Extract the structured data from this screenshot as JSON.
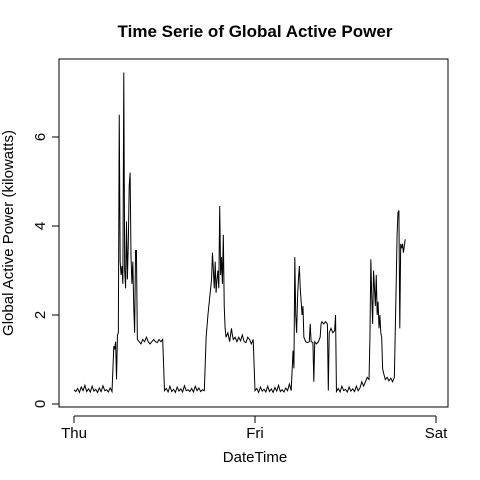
{
  "chart_data": {
    "type": "line",
    "title": "Time Serie of Global Active Power",
    "xlabel": "DateTime",
    "ylabel": "Global Active Power (kilowatts)",
    "x_ticks": [
      {
        "label": "Thu",
        "day": 0
      },
      {
        "label": "Fri",
        "day": 1
      },
      {
        "label": "Sat",
        "day": 2
      }
    ],
    "y_ticks": [
      0,
      2,
      4,
      6
    ],
    "xlim": [
      0,
      2
    ],
    "ylim": [
      0,
      7.5
    ],
    "grid": false,
    "legend": "none",
    "line_color": "#000000",
    "series": [
      {
        "values": [
          [
            0.0,
            0.32
          ],
          [
            0.01,
            0.28
          ],
          [
            0.02,
            0.35
          ],
          [
            0.03,
            0.26
          ],
          [
            0.04,
            0.38
          ],
          [
            0.05,
            0.3
          ],
          [
            0.06,
            0.42
          ],
          [
            0.07,
            0.28
          ],
          [
            0.08,
            0.34
          ],
          [
            0.09,
            0.27
          ],
          [
            0.1,
            0.4
          ],
          [
            0.11,
            0.29
          ],
          [
            0.12,
            0.33
          ],
          [
            0.13,
            0.26
          ],
          [
            0.14,
            0.36
          ],
          [
            0.15,
            0.28
          ],
          [
            0.16,
            0.41
          ],
          [
            0.17,
            0.3
          ],
          [
            0.18,
            0.32
          ],
          [
            0.19,
            0.27
          ],
          [
            0.2,
            0.36
          ],
          [
            0.21,
            0.28
          ],
          [
            0.22,
            1.3
          ],
          [
            0.225,
            1.25
          ],
          [
            0.23,
            1.4
          ],
          [
            0.235,
            0.55
          ],
          [
            0.24,
            1.55
          ],
          [
            0.245,
            1.6
          ],
          [
            0.25,
            6.5
          ],
          [
            0.255,
            3.2
          ],
          [
            0.26,
            2.9
          ],
          [
            0.265,
            3.1
          ],
          [
            0.27,
            2.7
          ],
          [
            0.275,
            7.45
          ],
          [
            0.28,
            3.0
          ],
          [
            0.285,
            2.6
          ],
          [
            0.29,
            4.1
          ],
          [
            0.295,
            2.8
          ],
          [
            0.3,
            3.6
          ],
          [
            0.305,
            4.9
          ],
          [
            0.31,
            5.2
          ],
          [
            0.315,
            3.3
          ],
          [
            0.32,
            2.7
          ],
          [
            0.325,
            3.2
          ],
          [
            0.33,
            2.2
          ],
          [
            0.335,
            1.6
          ],
          [
            0.34,
            3.45
          ],
          [
            0.345,
            3.45
          ],
          [
            0.35,
            1.45
          ],
          [
            0.36,
            1.4
          ],
          [
            0.37,
            1.35
          ],
          [
            0.38,
            1.45
          ],
          [
            0.39,
            1.4
          ],
          [
            0.4,
            1.5
          ],
          [
            0.41,
            1.4
          ],
          [
            0.42,
            1.35
          ],
          [
            0.43,
            1.4
          ],
          [
            0.44,
            1.45
          ],
          [
            0.45,
            1.4
          ],
          [
            0.46,
            1.38
          ],
          [
            0.47,
            1.45
          ],
          [
            0.48,
            1.4
          ],
          [
            0.49,
            1.45
          ],
          [
            0.5,
            0.3
          ],
          [
            0.51,
            0.35
          ],
          [
            0.52,
            0.27
          ],
          [
            0.53,
            0.4
          ],
          [
            0.54,
            0.28
          ],
          [
            0.55,
            0.33
          ],
          [
            0.56,
            0.26
          ],
          [
            0.57,
            0.38
          ],
          [
            0.58,
            0.29
          ],
          [
            0.59,
            0.34
          ],
          [
            0.6,
            0.27
          ],
          [
            0.61,
            0.41
          ],
          [
            0.62,
            0.3
          ],
          [
            0.63,
            0.32
          ],
          [
            0.64,
            0.28
          ],
          [
            0.65,
            0.35
          ],
          [
            0.66,
            0.27
          ],
          [
            0.67,
            0.4
          ],
          [
            0.68,
            0.3
          ],
          [
            0.69,
            0.36
          ],
          [
            0.7,
            0.28
          ],
          [
            0.71,
            0.32
          ],
          [
            0.72,
            0.3
          ],
          [
            0.73,
            1.5
          ],
          [
            0.74,
            2.0
          ],
          [
            0.75,
            2.4
          ],
          [
            0.76,
            2.8
          ],
          [
            0.765,
            3.4
          ],
          [
            0.77,
            3.0
          ],
          [
            0.775,
            2.6
          ],
          [
            0.78,
            3.2
          ],
          [
            0.785,
            2.5
          ],
          [
            0.79,
            2.8
          ],
          [
            0.795,
            3.0
          ],
          [
            0.8,
            2.6
          ],
          [
            0.805,
            4.45
          ],
          [
            0.81,
            2.9
          ],
          [
            0.815,
            3.3
          ],
          [
            0.82,
            2.7
          ],
          [
            0.825,
            3.8
          ],
          [
            0.83,
            2.2
          ],
          [
            0.835,
            1.7
          ],
          [
            0.84,
            1.5
          ],
          [
            0.85,
            1.6
          ],
          [
            0.86,
            1.4
          ],
          [
            0.87,
            1.7
          ],
          [
            0.875,
            1.55
          ],
          [
            0.88,
            1.45
          ],
          [
            0.89,
            1.5
          ],
          [
            0.9,
            1.4
          ],
          [
            0.91,
            1.5
          ],
          [
            0.92,
            1.42
          ],
          [
            0.93,
            1.55
          ],
          [
            0.94,
            1.4
          ],
          [
            0.95,
            1.38
          ],
          [
            0.96,
            1.5
          ],
          [
            0.97,
            1.45
          ],
          [
            0.98,
            1.35
          ],
          [
            0.99,
            1.45
          ],
          [
            1.0,
            0.3
          ],
          [
            1.01,
            0.35
          ],
          [
            1.02,
            0.26
          ],
          [
            1.03,
            0.38
          ],
          [
            1.04,
            0.29
          ],
          [
            1.05,
            0.33
          ],
          [
            1.06,
            0.27
          ],
          [
            1.07,
            0.4
          ],
          [
            1.08,
            0.28
          ],
          [
            1.09,
            0.34
          ],
          [
            1.1,
            0.26
          ],
          [
            1.11,
            0.37
          ],
          [
            1.12,
            0.29
          ],
          [
            1.13,
            0.42
          ],
          [
            1.14,
            0.28
          ],
          [
            1.15,
            0.32
          ],
          [
            1.16,
            0.27
          ],
          [
            1.17,
            0.36
          ],
          [
            1.18,
            0.3
          ],
          [
            1.19,
            0.45
          ],
          [
            1.2,
            0.3
          ],
          [
            1.21,
            1.2
          ],
          [
            1.215,
            0.8
          ],
          [
            1.22,
            3.3
          ],
          [
            1.225,
            2.0
          ],
          [
            1.23,
            1.6
          ],
          [
            1.235,
            2.4
          ],
          [
            1.24,
            2.8
          ],
          [
            1.245,
            3.1
          ],
          [
            1.25,
            2.6
          ],
          [
            1.255,
            2.3
          ],
          [
            1.26,
            2.0
          ],
          [
            1.265,
            2.2
          ],
          [
            1.27,
            1.5
          ],
          [
            1.28,
            1.4
          ],
          [
            1.29,
            1.38
          ],
          [
            1.3,
            1.4
          ],
          [
            1.305,
            1.8
          ],
          [
            1.31,
            1.4
          ],
          [
            1.32,
            1.38
          ],
          [
            1.325,
            0.5
          ],
          [
            1.33,
            1.4
          ],
          [
            1.34,
            1.35
          ],
          [
            1.35,
            1.4
          ],
          [
            1.36,
            1.5
          ],
          [
            1.365,
            1.8
          ],
          [
            1.37,
            1.85
          ],
          [
            1.38,
            1.8
          ],
          [
            1.39,
            1.85
          ],
          [
            1.4,
            1.8
          ],
          [
            1.405,
            0.3
          ],
          [
            1.41,
            1.6
          ],
          [
            1.42,
            1.7
          ],
          [
            1.43,
            1.6
          ],
          [
            1.44,
            1.65
          ],
          [
            1.445,
            2.0
          ],
          [
            1.45,
            0.28
          ],
          [
            1.46,
            0.35
          ],
          [
            1.47,
            0.27
          ],
          [
            1.48,
            0.4
          ],
          [
            1.49,
            0.3
          ],
          [
            1.5,
            0.33
          ],
          [
            1.51,
            0.27
          ],
          [
            1.52,
            0.38
          ],
          [
            1.53,
            0.29
          ],
          [
            1.54,
            0.34
          ],
          [
            1.55,
            0.28
          ],
          [
            1.56,
            0.4
          ],
          [
            1.57,
            0.3
          ],
          [
            1.58,
            0.36
          ],
          [
            1.59,
            0.5
          ],
          [
            1.6,
            0.4
          ],
          [
            1.61,
            0.5
          ],
          [
            1.62,
            0.6
          ],
          [
            1.63,
            0.55
          ],
          [
            1.635,
            1.5
          ],
          [
            1.64,
            3.25
          ],
          [
            1.645,
            2.4
          ],
          [
            1.65,
            1.8
          ],
          [
            1.655,
            3.0
          ],
          [
            1.66,
            2.6
          ],
          [
            1.665,
            2.2
          ],
          [
            1.67,
            2.9
          ],
          [
            1.675,
            2.0
          ],
          [
            1.68,
            2.3
          ],
          [
            1.685,
            1.7
          ],
          [
            1.69,
            2.0
          ],
          [
            1.695,
            1.6
          ],
          [
            1.7,
            1.5
          ],
          [
            1.705,
            0.8
          ],
          [
            1.71,
            0.7
          ],
          [
            1.72,
            0.55
          ],
          [
            1.73,
            0.6
          ],
          [
            1.74,
            0.52
          ],
          [
            1.75,
            0.58
          ],
          [
            1.76,
            0.5
          ],
          [
            1.77,
            0.6
          ],
          [
            1.78,
            2.7
          ],
          [
            1.785,
            3.8
          ],
          [
            1.79,
            4.3
          ],
          [
            1.795,
            4.35
          ],
          [
            1.8,
            1.7
          ],
          [
            1.805,
            3.6
          ],
          [
            1.81,
            3.5
          ],
          [
            1.815,
            3.6
          ],
          [
            1.82,
            3.4
          ],
          [
            1.825,
            3.55
          ],
          [
            1.83,
            3.7
          ]
        ]
      }
    ]
  }
}
